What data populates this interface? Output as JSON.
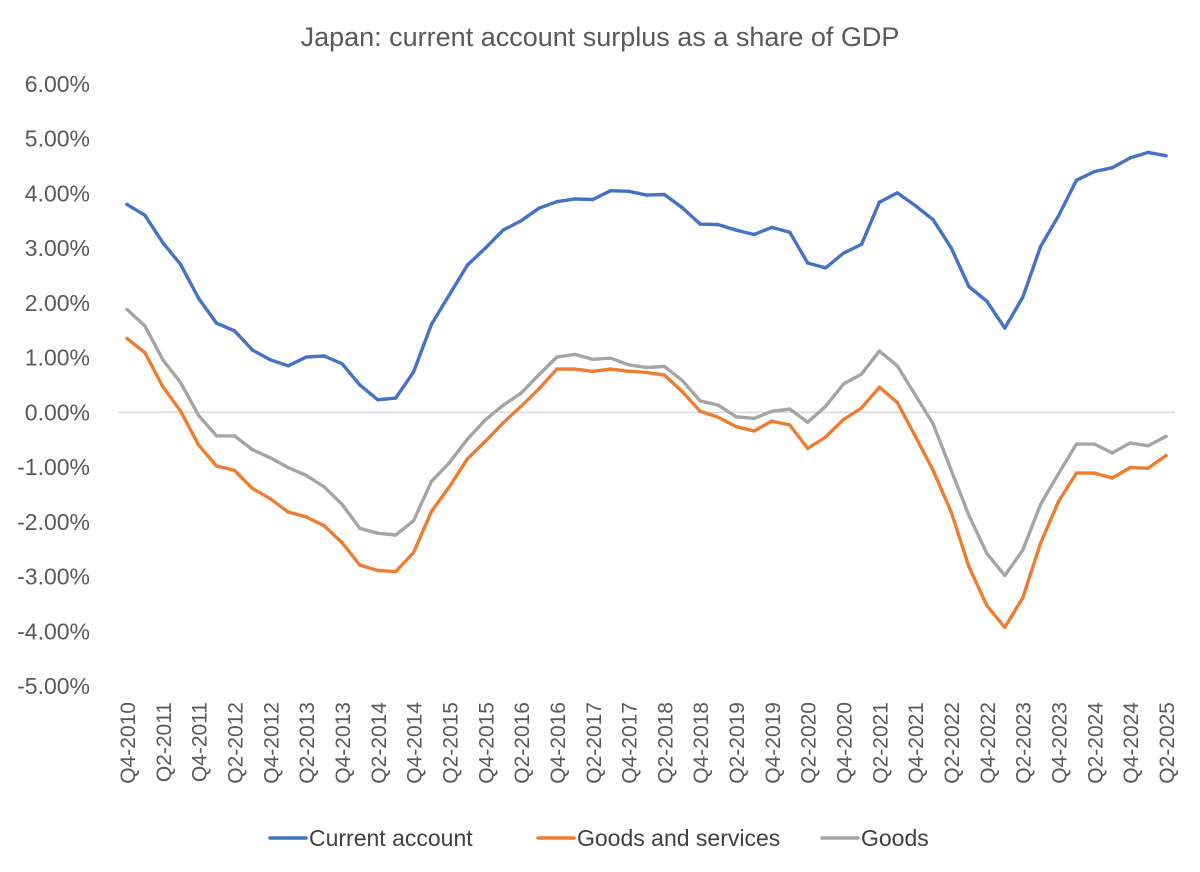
{
  "chart_data": {
    "type": "line",
    "title": "Japan: current account surplus as a share of GDP",
    "xlabel": "",
    "ylabel": "",
    "ylim": [
      -0.05,
      0.06
    ],
    "y_ticks": [
      {
        "value": 0.06,
        "label": "6.00%"
      },
      {
        "value": 0.05,
        "label": "5.00%"
      },
      {
        "value": 0.04,
        "label": "4.00%"
      },
      {
        "value": 0.03,
        "label": "3.00%"
      },
      {
        "value": 0.02,
        "label": "2.00%"
      },
      {
        "value": 0.01,
        "label": "1.00%"
      },
      {
        "value": 0.0,
        "label": "0.00%"
      },
      {
        "value": -0.01,
        "label": "-1.00%"
      },
      {
        "value": -0.02,
        "label": "-2.00%"
      },
      {
        "value": -0.03,
        "label": "-3.00%"
      },
      {
        "value": -0.04,
        "label": "-4.00%"
      },
      {
        "value": -0.05,
        "label": "-5.00%"
      }
    ],
    "categories": [
      "Q4-2010",
      "Q1-2011",
      "Q2-2011",
      "Q3-2011",
      "Q4-2011",
      "Q1-2012",
      "Q2-2012",
      "Q3-2012",
      "Q4-2012",
      "Q1-2013",
      "Q2-2013",
      "Q3-2013",
      "Q4-2013",
      "Q1-2014",
      "Q2-2014",
      "Q3-2014",
      "Q4-2014",
      "Q1-2015",
      "Q2-2015",
      "Q3-2015",
      "Q4-2015",
      "Q1-2016",
      "Q2-2016",
      "Q3-2016",
      "Q4-2016",
      "Q1-2017",
      "Q2-2017",
      "Q3-2017",
      "Q4-2017",
      "Q1-2018",
      "Q2-2018",
      "Q3-2018",
      "Q4-2018",
      "Q1-2019",
      "Q2-2019",
      "Q3-2019",
      "Q4-2019",
      "Q1-2020",
      "Q2-2020",
      "Q3-2020",
      "Q4-2020",
      "Q1-2021",
      "Q2-2021",
      "Q3-2021",
      "Q4-2021",
      "Q1-2022",
      "Q2-2022",
      "Q3-2022",
      "Q4-2022",
      "Q1-2023",
      "Q2-2023",
      "Q3-2023",
      "Q4-2023",
      "Q1-2024",
      "Q2-2024",
      "Q3-2024",
      "Q4-2024",
      "Q1-2025",
      "Q2-2025"
    ],
    "x_tick_labels": [
      "Q4-2010",
      "Q2-2011",
      "Q4-2011",
      "Q2-2012",
      "Q4-2012",
      "Q2-2013",
      "Q4-2013",
      "Q2-2014",
      "Q4-2014",
      "Q2-2015",
      "Q4-2015",
      "Q2-2016",
      "Q4-2016",
      "Q2-2017",
      "Q4-2017",
      "Q2-2018",
      "Q4-2018",
      "Q2-2019",
      "Q4-2019",
      "Q2-2020",
      "Q4-2020",
      "Q2-2021",
      "Q4-2021",
      "Q2-2022",
      "Q4-2022",
      "Q2-2023",
      "Q4-2023",
      "Q2-2024",
      "Q4-2024",
      "Q2-2025"
    ],
    "series": [
      {
        "name": "Current account",
        "color": "#4472C4",
        "values": [
          0.038,
          0.036,
          0.031,
          0.027,
          0.0208,
          0.0163,
          0.0149,
          0.0114,
          0.0096,
          0.0085,
          0.0101,
          0.0103,
          0.0089,
          0.005,
          0.0023,
          0.0026,
          0.0074,
          0.0161,
          0.0215,
          0.0269,
          0.03,
          0.0333,
          0.035,
          0.0373,
          0.0385,
          0.039,
          0.0389,
          0.0405,
          0.0404,
          0.0397,
          0.0398,
          0.0374,
          0.0344,
          0.0343,
          0.0333,
          0.0325,
          0.0338,
          0.0329,
          0.0273,
          0.0264,
          0.0291,
          0.0307,
          0.0384,
          0.0401,
          0.0378,
          0.0352,
          0.0301,
          0.023,
          0.0203,
          0.0154,
          0.021,
          0.0303,
          0.0359,
          0.0424,
          0.044,
          0.0447,
          0.0465,
          0.0475,
          0.0469
        ]
      },
      {
        "name": "Goods and services",
        "color": "#ED7D31",
        "values": [
          0.0135,
          0.0109,
          0.0047,
          0.0002,
          -0.006,
          -0.0098,
          -0.0106,
          -0.0139,
          -0.0158,
          -0.0182,
          -0.0191,
          -0.0207,
          -0.0238,
          -0.0279,
          -0.0289,
          -0.0291,
          -0.0256,
          -0.0181,
          -0.0136,
          -0.0085,
          -0.0053,
          -0.0019,
          0.0011,
          0.0043,
          0.0079,
          0.0079,
          0.0075,
          0.0079,
          0.0075,
          0.0073,
          0.0068,
          0.0038,
          0.0002,
          -0.0009,
          -0.0026,
          -0.0034,
          -0.0016,
          -0.0023,
          -0.0066,
          -0.0045,
          -0.0013,
          0.0008,
          0.0046,
          0.0018,
          -0.0043,
          -0.0106,
          -0.0181,
          -0.0282,
          -0.0353,
          -0.0393,
          -0.0339,
          -0.0239,
          -0.0163,
          -0.0111,
          -0.0111,
          -0.012,
          -0.0101,
          -0.0102,
          -0.0079
        ]
      },
      {
        "name": "Goods",
        "color": "#A5A5A5",
        "values": [
          0.0188,
          0.0158,
          0.0096,
          0.0054,
          -0.0006,
          -0.0043,
          -0.0043,
          -0.0068,
          -0.0083,
          -0.0101,
          -0.0115,
          -0.0136,
          -0.0168,
          -0.0212,
          -0.0221,
          -0.0224,
          -0.0198,
          -0.0126,
          -0.0092,
          -0.0049,
          -0.0014,
          0.0013,
          0.0035,
          0.0069,
          0.0101,
          0.0106,
          0.0097,
          0.0099,
          0.0087,
          0.0082,
          0.0084,
          0.0058,
          0.0021,
          0.0013,
          -0.0008,
          -0.0011,
          0.0002,
          0.0006,
          -0.0018,
          0.0011,
          0.0052,
          0.007,
          0.0112,
          0.0085,
          0.0032,
          -0.0021,
          -0.0105,
          -0.0188,
          -0.0258,
          -0.0298,
          -0.0252,
          -0.0168,
          -0.0112,
          -0.0058,
          -0.0058,
          -0.0074,
          -0.0056,
          -0.0061,
          -0.0044
        ]
      }
    ],
    "legend_position": "bottom",
    "grid": false
  }
}
